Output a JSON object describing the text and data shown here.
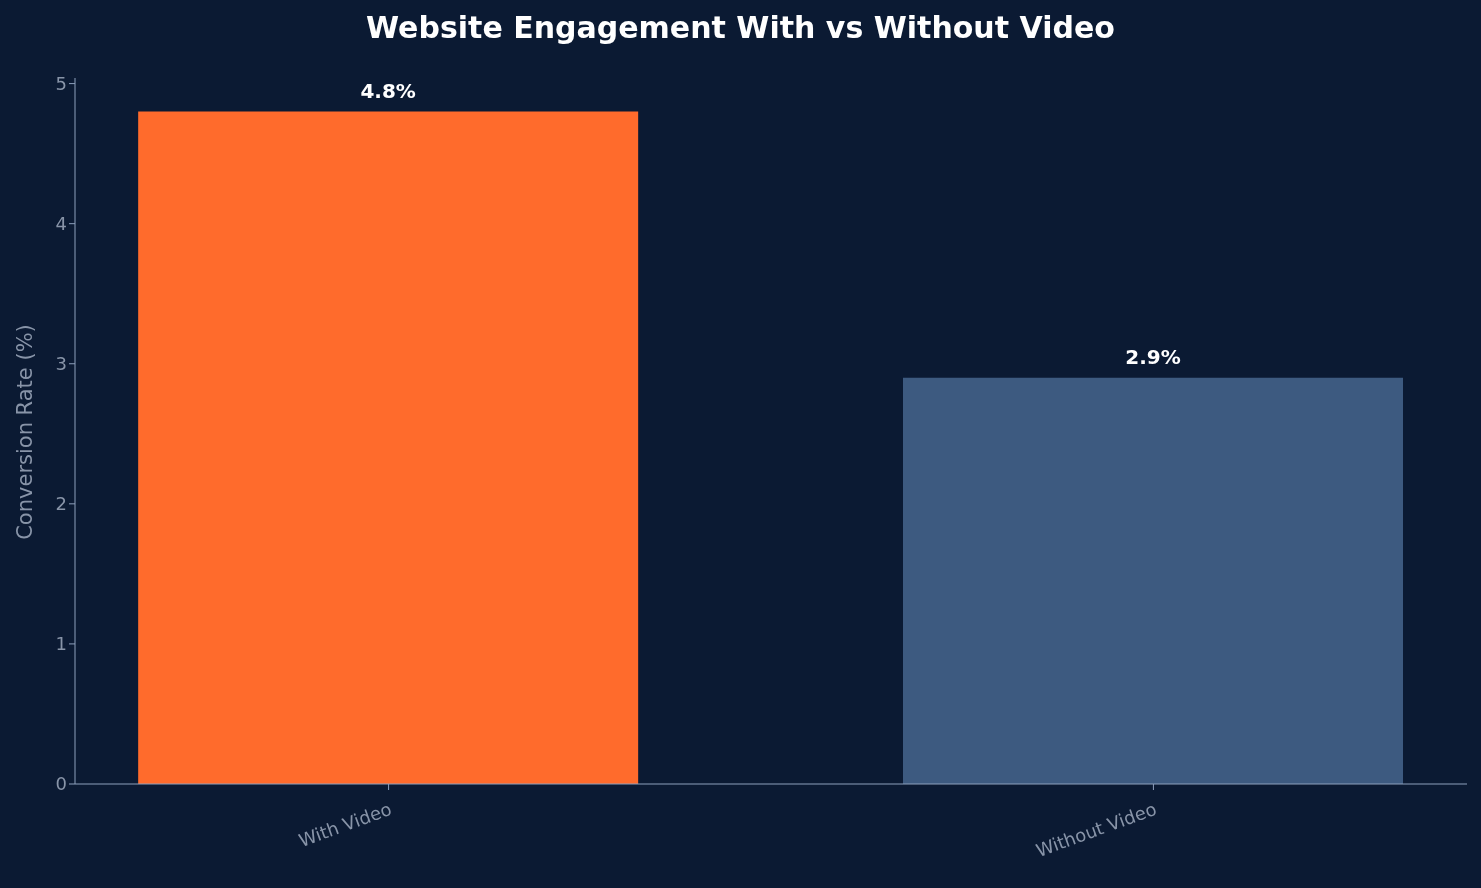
{
  "chart_data": {
    "type": "bar",
    "title": "Website Engagement With vs Without Video",
    "ylabel": "Conversion Rate (%)",
    "categories": [
      "With Video",
      "Without Video"
    ],
    "values": [
      4.8,
      2.9
    ],
    "colors": [
      "#ff6b2c",
      "#3d5a80"
    ],
    "value_labels": [
      "4.8%",
      "2.9%"
    ],
    "ylim": [
      0,
      5.04
    ],
    "yticks": [
      0,
      1,
      2,
      3,
      4,
      5
    ],
    "grid": false,
    "legend": false
  }
}
